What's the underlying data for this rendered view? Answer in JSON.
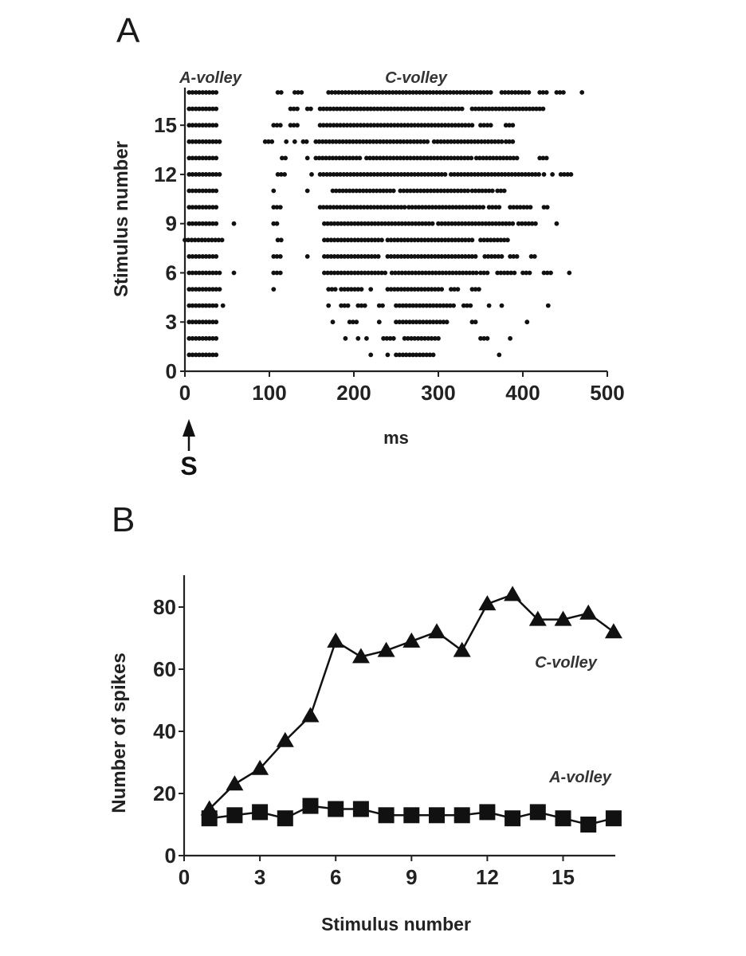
{
  "panels": {
    "a": {
      "letter": "A"
    },
    "b": {
      "letter": "B"
    }
  },
  "chart_data": [
    {
      "id": "A",
      "type": "scatter",
      "subtype": "raster",
      "title": "",
      "xlabel": "ms",
      "ylabel": "Stimulus number",
      "xlim": [
        0,
        500
      ],
      "ylim": [
        0,
        17
      ],
      "xticks": [
        0,
        100,
        200,
        300,
        400,
        500
      ],
      "yticks": [
        0,
        3,
        6,
        9,
        12,
        15
      ],
      "annotations": [
        {
          "text": "A-volley",
          "x": 30,
          "y": 17.9,
          "style": "bold-italic"
        },
        {
          "text": "C-volley",
          "x": 275,
          "y": 17.9,
          "style": "bold-italic"
        },
        {
          "text": "S",
          "x": 5,
          "note": "stimulus arrow below x-axis"
        }
      ],
      "spike_step_ms": 4,
      "rows": [
        {
          "stimulus": 1,
          "runs": [
            [
              5,
              40
            ],
            [
              220,
              220
            ],
            [
              240,
              240
            ],
            [
              250,
              295
            ],
            [
              372,
              372
            ]
          ]
        },
        {
          "stimulus": 2,
          "runs": [
            [
              5,
              40
            ],
            [
              190,
              190
            ],
            [
              205,
              205
            ],
            [
              215,
              215
            ],
            [
              235,
              250
            ],
            [
              260,
              300
            ],
            [
              350,
              360
            ],
            [
              385,
              385
            ]
          ]
        },
        {
          "stimulus": 3,
          "runs": [
            [
              5,
              40
            ],
            [
              175,
              175
            ],
            [
              195,
              205
            ],
            [
              230,
              230
            ],
            [
              250,
              310
            ],
            [
              340,
              345
            ],
            [
              405,
              405
            ]
          ]
        },
        {
          "stimulus": 4,
          "runs": [
            [
              5,
              38
            ],
            [
              45,
              45
            ],
            [
              170,
              170
            ],
            [
              185,
              195
            ],
            [
              205,
              215
            ],
            [
              230,
              235
            ],
            [
              250,
              320
            ],
            [
              330,
              340
            ],
            [
              360,
              360
            ],
            [
              375,
              375
            ],
            [
              430,
              430
            ]
          ]
        },
        {
          "stimulus": 5,
          "runs": [
            [
              5,
              44
            ],
            [
              105,
              105
            ],
            [
              170,
              180
            ],
            [
              185,
              210
            ],
            [
              220,
              220
            ],
            [
              240,
              305
            ],
            [
              315,
              325
            ],
            [
              340,
              350
            ]
          ]
        },
        {
          "stimulus": 6,
          "runs": [
            [
              5,
              44
            ],
            [
              58,
              58
            ],
            [
              105,
              115
            ],
            [
              165,
              240
            ],
            [
              245,
              345
            ],
            [
              350,
              360
            ],
            [
              370,
              390
            ],
            [
              400,
              410
            ],
            [
              425,
              435
            ],
            [
              455,
              455
            ]
          ]
        },
        {
          "stimulus": 7,
          "runs": [
            [
              5,
              40
            ],
            [
              105,
              115
            ],
            [
              145,
              145
            ],
            [
              165,
              230
            ],
            [
              240,
              345
            ],
            [
              355,
              375
            ],
            [
              385,
              395
            ],
            [
              410,
              415
            ]
          ]
        },
        {
          "stimulus": 8,
          "runs": [
            [
              0,
              44
            ],
            [
              110,
              115
            ],
            [
              165,
              235
            ],
            [
              240,
              340
            ],
            [
              350,
              385
            ]
          ]
        },
        {
          "stimulus": 9,
          "runs": [
            [
              5,
              40
            ],
            [
              58,
              58
            ],
            [
              105,
              110
            ],
            [
              165,
              295
            ],
            [
              300,
              390
            ],
            [
              395,
              415
            ],
            [
              440,
              440
            ]
          ]
        },
        {
          "stimulus": 10,
          "runs": [
            [
              5,
              40
            ],
            [
              105,
              115
            ],
            [
              160,
              260
            ],
            [
              265,
              355
            ],
            [
              360,
              375
            ],
            [
              385,
              410
            ],
            [
              425,
              430
            ]
          ]
        },
        {
          "stimulus": 11,
          "runs": [
            [
              5,
              40
            ],
            [
              105,
              105
            ],
            [
              145,
              145
            ],
            [
              175,
              250
            ],
            [
              255,
              335
            ],
            [
              340,
              365
            ],
            [
              370,
              380
            ]
          ]
        },
        {
          "stimulus": 12,
          "runs": [
            [
              5,
              44
            ],
            [
              110,
              120
            ],
            [
              150,
              150
            ],
            [
              160,
              310
            ],
            [
              315,
              420
            ],
            [
              425,
              425
            ],
            [
              435,
              435
            ],
            [
              445,
              460
            ]
          ]
        },
        {
          "stimulus": 13,
          "runs": [
            [
              5,
              40
            ],
            [
              115,
              120
            ],
            [
              145,
              145
            ],
            [
              155,
              210
            ],
            [
              215,
              340
            ],
            [
              345,
              395
            ],
            [
              420,
              430
            ]
          ]
        },
        {
          "stimulus": 14,
          "runs": [
            [
              5,
              44
            ],
            [
              95,
              105
            ],
            [
              120,
              120
            ],
            [
              130,
              130
            ],
            [
              140,
              145
            ],
            [
              155,
              290
            ],
            [
              295,
              375
            ],
            [
              380,
              390
            ]
          ]
        },
        {
          "stimulus": 15,
          "runs": [
            [
              5,
              40
            ],
            [
              105,
              115
            ],
            [
              125,
              135
            ],
            [
              160,
              340
            ],
            [
              350,
              365
            ],
            [
              380,
              390
            ]
          ]
        },
        {
          "stimulus": 16,
          "runs": [
            [
              5,
              40
            ],
            [
              125,
              135
            ],
            [
              145,
              150
            ],
            [
              160,
              330
            ],
            [
              340,
              425
            ]
          ]
        },
        {
          "stimulus": 17,
          "runs": [
            [
              5,
              40
            ],
            [
              110,
              115
            ],
            [
              130,
              140
            ],
            [
              170,
              365
            ],
            [
              375,
              410
            ],
            [
              420,
              430
            ],
            [
              440,
              450
            ],
            [
              470,
              470
            ]
          ]
        }
      ]
    },
    {
      "id": "B",
      "type": "line",
      "title": "",
      "xlabel": "Stimulus number",
      "ylabel": "Number of spikes",
      "xlim": [
        0,
        17
      ],
      "ylim": [
        0,
        90
      ],
      "xticks": [
        0,
        3,
        6,
        9,
        12,
        15
      ],
      "yticks": [
        0,
        20,
        40,
        60,
        80
      ],
      "x": [
        1,
        2,
        3,
        4,
        5,
        6,
        7,
        8,
        9,
        10,
        11,
        12,
        13,
        14,
        15,
        16,
        17
      ],
      "series": [
        {
          "name": "C-volley",
          "marker": "triangle",
          "values": [
            15,
            23,
            28,
            37,
            45,
            69,
            64,
            66,
            69,
            72,
            66,
            81,
            84,
            76,
            76,
            78,
            72
          ]
        },
        {
          "name": "A-volley",
          "marker": "square",
          "values": [
            12,
            13,
            14,
            12,
            16,
            15,
            15,
            13,
            13,
            13,
            13,
            14,
            12,
            14,
            12,
            10,
            12
          ]
        }
      ],
      "annotations": [
        {
          "text": "C-volley",
          "x": 14.5,
          "y": 62,
          "style": "bold-italic"
        },
        {
          "text": "A-volley",
          "x": 15,
          "y": 26,
          "style": "bold-italic"
        }
      ]
    }
  ]
}
